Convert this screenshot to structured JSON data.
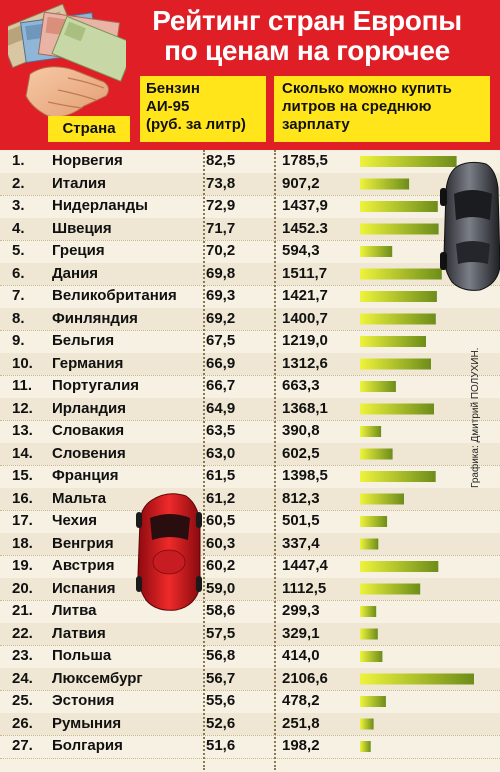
{
  "header": {
    "title_line1": "Рейтинг стран Европы",
    "title_line2": "по ценам на горючее",
    "col_country": "Страна",
    "col_price_line1": "Бензин",
    "col_price_line2": "АИ-95",
    "col_price_line3": "(руб. за литр)",
    "col_liters_line1": "Сколько можно купить",
    "col_liters_line2": "литров на среднюю",
    "col_liters_line3": "зарплату"
  },
  "credit": "Графика: Дмитрий ПОЛУХИН.",
  "colors": {
    "header_red": "#e01e25",
    "header_yellow": "#ffe51a",
    "bar_light": "#e9ef3a",
    "bar_dark": "#6f8f1c",
    "background": "#f7f1e3"
  },
  "chart_data": {
    "type": "table",
    "title": "Рейтинг стран Европы по ценам на горючее",
    "columns": [
      "Страна",
      "Бензин АИ-95 (руб. за литр)",
      "Сколько можно купить литров на среднюю зарплату"
    ],
    "rows": [
      {
        "rank": "1.",
        "country": "Норвегия",
        "price": "82,5",
        "liters": "1785,5",
        "liters_value": 1785.5
      },
      {
        "rank": "2.",
        "country": "Италия",
        "price": "73,8",
        "liters": "907,2",
        "liters_value": 907.2
      },
      {
        "rank": "3.",
        "country": "Нидерланды",
        "price": "72,9",
        "liters": "1437,9",
        "liters_value": 1437.9
      },
      {
        "rank": "4.",
        "country": "Швеция",
        "price": "71,7",
        "liters": "1452.3",
        "liters_value": 1452.3
      },
      {
        "rank": "5.",
        "country": "Греция",
        "price": "70,2",
        "liters": "594,3",
        "liters_value": 594.3
      },
      {
        "rank": "6.",
        "country": "Дания",
        "price": "69,8",
        "liters": "1511,7",
        "liters_value": 1511.7
      },
      {
        "rank": "7.",
        "country": "Великобритания",
        "price": "69,3",
        "liters": "1421,7",
        "liters_value": 1421.7
      },
      {
        "rank": "8.",
        "country": "Финляндия",
        "price": "69,2",
        "liters": "1400,7",
        "liters_value": 1400.7
      },
      {
        "rank": "9.",
        "country": "Бельгия",
        "price": "67,5",
        "liters": "1219,0",
        "liters_value": 1219.0
      },
      {
        "rank": "10.",
        "country": "Германия",
        "price": "66,9",
        "liters": "1312,6",
        "liters_value": 1312.6
      },
      {
        "rank": "11.",
        "country": "Португалия",
        "price": "66,7",
        "liters": "663,3",
        "liters_value": 663.3
      },
      {
        "rank": "12.",
        "country": "Ирландия",
        "price": "64,9",
        "liters": "1368,1",
        "liters_value": 1368.1
      },
      {
        "rank": "13.",
        "country": "Словакия",
        "price": "63,5",
        "liters": "390,8",
        "liters_value": 390.8
      },
      {
        "rank": "14.",
        "country": "Словения",
        "price": "63,0",
        "liters": "602,5",
        "liters_value": 602.5
      },
      {
        "rank": "15.",
        "country": "Франция",
        "price": "61,5",
        "liters": "1398,5",
        "liters_value": 1398.5
      },
      {
        "rank": "16.",
        "country": "Мальта",
        "price": "61,2",
        "liters": "812,3",
        "liters_value": 812.3
      },
      {
        "rank": "17.",
        "country": "Чехия",
        "price": "60,5",
        "liters": "501,5",
        "liters_value": 501.5
      },
      {
        "rank": "18.",
        "country": "Венгрия",
        "price": "60,3",
        "liters": "337,4",
        "liters_value": 337.4
      },
      {
        "rank": "19.",
        "country": "Австрия",
        "price": "60,2",
        "liters": "1447,4",
        "liters_value": 1447.4
      },
      {
        "rank": "20.",
        "country": "Испания",
        "price": "59,0",
        "liters": "1112,5",
        "liters_value": 1112.5
      },
      {
        "rank": "21.",
        "country": "Литва",
        "price": "58,6",
        "liters": "299,3",
        "liters_value": 299.3
      },
      {
        "rank": "22.",
        "country": "Латвия",
        "price": "57,5",
        "liters": "329,1",
        "liters_value": 329.1
      },
      {
        "rank": "23.",
        "country": "Польша",
        "price": "56,8",
        "liters": "414,0",
        "liters_value": 414.0
      },
      {
        "rank": "24.",
        "country": "Люксембург",
        "price": "56,7",
        "liters": "2106,6",
        "liters_value": 2106.6
      },
      {
        "rank": "25.",
        "country": "Эстония",
        "price": "55,6",
        "liters": "478,2",
        "liters_value": 478.2
      },
      {
        "rank": "26.",
        "country": "Румыния",
        "price": "52,6",
        "liters": "251,8",
        "liters_value": 251.8
      },
      {
        "rank": "27.",
        "country": "Болгария",
        "price": "51,6",
        "liters": "198,2",
        "liters_value": 198.2
      }
    ]
  }
}
